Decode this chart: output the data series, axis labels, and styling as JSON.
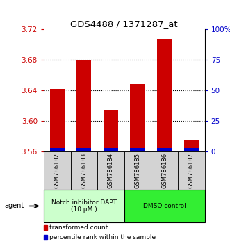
{
  "title": "GDS4488 / 1371287_at",
  "categories": [
    "GSM786182",
    "GSM786183",
    "GSM786184",
    "GSM786185",
    "GSM786186",
    "GSM786187"
  ],
  "red_values": [
    3.642,
    3.68,
    3.614,
    3.648,
    3.708,
    3.575
  ],
  "ylim_left": [
    3.56,
    3.72
  ],
  "ylim_right": [
    0,
    100
  ],
  "yticks_left": [
    3.56,
    3.6,
    3.64,
    3.68,
    3.72
  ],
  "yticks_right": [
    0,
    25,
    50,
    75,
    100
  ],
  "ytick_labels_right": [
    "0",
    "25",
    "50",
    "75",
    "100%"
  ],
  "gridlines": [
    3.6,
    3.64,
    3.68
  ],
  "bar_bottom": 3.56,
  "bar_width": 0.55,
  "red_color": "#cc0000",
  "blue_color": "#0000cc",
  "blue_bar_height": 0.004,
  "group1_label": "Notch inhibitor DAPT\n(10 μM.)",
  "group2_label": "DMSO control",
  "group1_color": "#ccffcc",
  "group2_color": "#33ee33",
  "legend_red": "transformed count",
  "legend_blue": "percentile rank within the sample",
  "agent_label": "agent",
  "fig_width": 3.31,
  "fig_height": 3.54,
  "dpi": 100
}
